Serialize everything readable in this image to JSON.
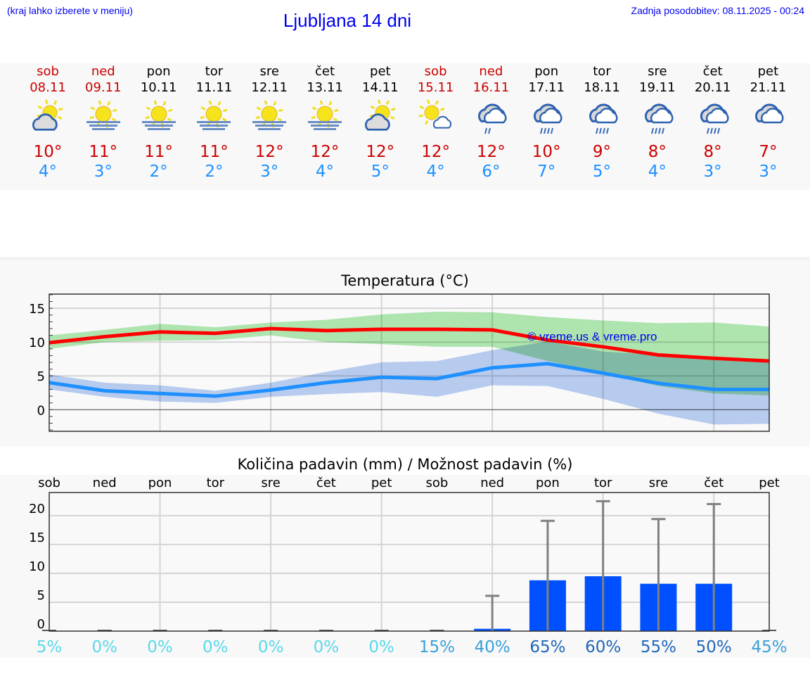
{
  "header": {
    "hint": "(kraj lahko izberete v meniju)",
    "title": "Ljubljana 14 dni",
    "updated": "Zadnja posodobitev: 08.11.2025 - 00:24"
  },
  "days": [
    {
      "name": "sob",
      "date": "08.11",
      "weekend": true,
      "icon": "sun-cloud",
      "max": "10°",
      "min": "4°"
    },
    {
      "name": "ned",
      "date": "09.11",
      "weekend": true,
      "icon": "sun-fog",
      "max": "11°",
      "min": "3°"
    },
    {
      "name": "pon",
      "date": "10.11",
      "weekend": false,
      "icon": "sun-fog",
      "max": "11°",
      "min": "2°"
    },
    {
      "name": "tor",
      "date": "11.11",
      "weekend": false,
      "icon": "sun-fog",
      "max": "11°",
      "min": "2°"
    },
    {
      "name": "sre",
      "date": "12.11",
      "weekend": false,
      "icon": "sun-fog",
      "max": "12°",
      "min": "3°"
    },
    {
      "name": "čet",
      "date": "13.11",
      "weekend": false,
      "icon": "sun-fog",
      "max": "12°",
      "min": "4°"
    },
    {
      "name": "pet",
      "date": "14.11",
      "weekend": false,
      "icon": "sun-cloud",
      "max": "12°",
      "min": "5°"
    },
    {
      "name": "sob",
      "date": "15.11",
      "weekend": true,
      "icon": "sun-small-cloud",
      "max": "12°",
      "min": "4°"
    },
    {
      "name": "ned",
      "date": "16.11",
      "weekend": true,
      "icon": "light-rain",
      "max": "12°",
      "min": "6°"
    },
    {
      "name": "pon",
      "date": "17.11",
      "weekend": false,
      "icon": "rain",
      "max": "10°",
      "min": "7°"
    },
    {
      "name": "tor",
      "date": "18.11",
      "weekend": false,
      "icon": "rain",
      "max": "9°",
      "min": "5°"
    },
    {
      "name": "sre",
      "date": "19.11",
      "weekend": false,
      "icon": "rain",
      "max": "8°",
      "min": "4°"
    },
    {
      "name": "čet",
      "date": "20.11",
      "weekend": false,
      "icon": "rain",
      "max": "8°",
      "min": "3°"
    },
    {
      "name": "pet",
      "date": "21.11",
      "weekend": false,
      "icon": "cloudy",
      "max": "7°",
      "min": "3°"
    }
  ],
  "chart_data": [
    {
      "type": "line",
      "title": "Temperatura (°C)",
      "ylim": [
        -3.2,
        17.1
      ],
      "yticks": [
        "0",
        "5",
        "10",
        "15"
      ],
      "grid": true,
      "watermark": "© vreme.us & vreme.pro",
      "series": [
        {
          "role": "max",
          "color": "#ff0000",
          "values": [
            9.9,
            10.8,
            11.5,
            11.3,
            12.0,
            11.7,
            11.9,
            11.9,
            11.8,
            10.3,
            9.3,
            8.1,
            7.6,
            7.2
          ],
          "band_upper": [
            11,
            11.8,
            12.7,
            12.2,
            12.9,
            13.3,
            14.1,
            14.5,
            14.4,
            13.7,
            13.2,
            12.8,
            12.9,
            12.3
          ],
          "band_lower": [
            9,
            10,
            10.2,
            10.3,
            11,
            10,
            9.7,
            9.3,
            9.3,
            7.2,
            5.4,
            3.5,
            2.4,
            2.1
          ],
          "band_color": "#aee9ae"
        },
        {
          "role": "min",
          "color": "#1e90ff",
          "values": [
            4.0,
            2.8,
            2.4,
            2.0,
            2.9,
            4.0,
            4.8,
            4.6,
            6.2,
            6.8,
            5.4,
            3.9,
            3.0,
            3.0
          ],
          "band_upper": [
            5.2,
            4,
            3.6,
            2.8,
            4,
            5.6,
            7,
            7.2,
            8.8,
            10.1,
            8.6,
            8.1,
            7.6,
            7.2
          ],
          "band_lower": [
            3,
            1.9,
            1.2,
            1.0,
            1.9,
            2.3,
            2.6,
            1.9,
            3.6,
            3.5,
            1.6,
            -0.6,
            -2.2,
            -2.1
          ],
          "band_color": "#b0c8f2"
        }
      ]
    },
    {
      "type": "bar",
      "title": "Količina padavin (mm) / Možnost padavin (%)",
      "ylim": [
        0,
        24
      ],
      "yticks": [
        "0",
        "5",
        "10",
        "15",
        "20"
      ],
      "grid": true,
      "categories": [
        "sob",
        "ned",
        "pon",
        "tor",
        "sre",
        "čet",
        "pet",
        "sob",
        "ned",
        "pon",
        "tor",
        "sre",
        "čet",
        "pet"
      ],
      "values": [
        0,
        0,
        0,
        0,
        0,
        0,
        0,
        0,
        0.4,
        8.8,
        9.5,
        8.2,
        8.2,
        0
      ],
      "error_upper": [
        0,
        0,
        0,
        0,
        0,
        0,
        0,
        0,
        6.1,
        19.1,
        22.5,
        19.4,
        22.0,
        0
      ],
      "probability": [
        "5%",
        "0%",
        "0%",
        "0%",
        "0%",
        "0%",
        "0%",
        "15%",
        "40%",
        "65%",
        "60%",
        "55%",
        "50%",
        "45%"
      ],
      "bar_color": "#0050ff",
      "error_color": "#808080"
    }
  ]
}
